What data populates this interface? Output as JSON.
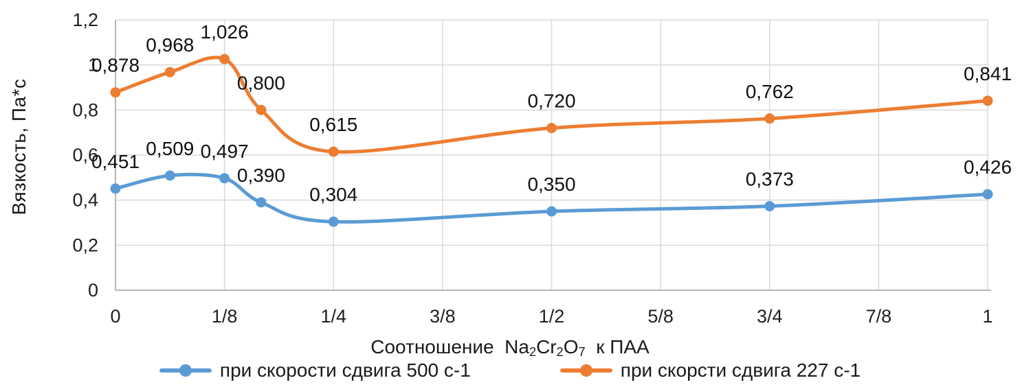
{
  "chart_data": {
    "type": "line",
    "title": "",
    "ylabel": "Вязкость, Па*с",
    "xlabel_parts": {
      "p1": "Соотношение  Na",
      "s1": "2",
      "p2": "Cr",
      "s2": "2",
      "p3": "O",
      "s3": "7",
      "p4": "  к ПАА"
    },
    "x": [
      0,
      0.0625,
      0.125,
      0.167,
      0.25,
      0.5,
      0.75,
      1
    ],
    "x_tick_values": [
      0,
      0.125,
      0.25,
      0.375,
      0.5,
      0.625,
      0.75,
      0.875,
      1
    ],
    "x_tick_labels": [
      "0",
      "1/8",
      "1/4",
      "3/8",
      "1/2",
      "5/8",
      "3/4",
      "7/8",
      "1"
    ],
    "y_tick_values": [
      0,
      0.2,
      0.4,
      0.6,
      0.8,
      1,
      1.2
    ],
    "y_tick_labels": [
      "0",
      "0,2",
      "0,4",
      "0,6",
      "0,8",
      "1",
      "1,2"
    ],
    "ylim": [
      0,
      1.2
    ],
    "xlim": [
      0,
      1
    ],
    "grid": true,
    "smooth_lines": true,
    "legend_position": "bottom",
    "series": [
      {
        "name": "при скорости сдвига 500 с-1",
        "color": "#5B9BD5",
        "values": [
          0.451,
          0.509,
          0.497,
          0.39,
          0.304,
          0.35,
          0.373,
          0.426
        ],
        "labels": [
          "0,451",
          "0,509",
          "0,497",
          "0,390",
          "0,304",
          "0,350",
          "0,373",
          "0,426"
        ]
      },
      {
        "name": "при скорсти сдвига 227 с-1",
        "color": "#ED7D31",
        "values": [
          0.878,
          0.968,
          1.026,
          0.8,
          0.615,
          0.72,
          0.762,
          0.841
        ],
        "labels": [
          "0,878",
          "0,968",
          "1,026",
          "0,800",
          "0,615",
          "0,720",
          "0,762",
          "0,841"
        ]
      }
    ]
  },
  "colors": {
    "grid": "#D9D9D9",
    "axis": "#B7B7B7",
    "text": "#1A1A1A"
  }
}
